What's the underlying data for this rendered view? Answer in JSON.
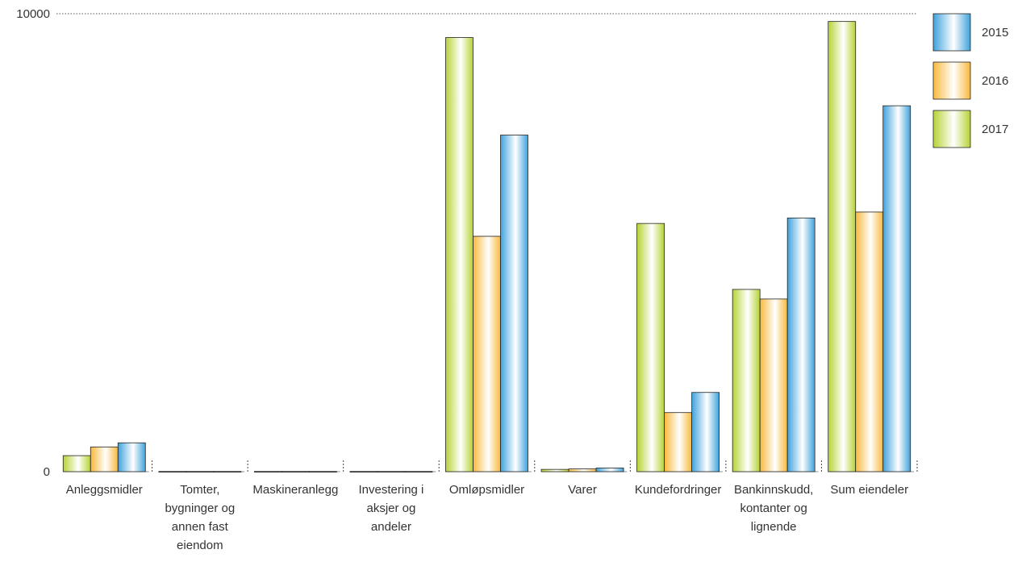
{
  "chart_data": {
    "type": "bar",
    "categories": [
      [
        "Anleggsmidler"
      ],
      [
        "Tomter,",
        "bygninger og",
        "annen fast",
        "eiendom"
      ],
      [
        "Maskineranlegg"
      ],
      [
        "Investering i",
        "aksjer og",
        "andeler"
      ],
      [
        "Omløpsmidler"
      ],
      [
        "Varer"
      ],
      [
        "Kundefordringer"
      ],
      [
        "Bankinnskudd,",
        "kontanter og",
        "lignende"
      ],
      [
        "Sum eiendeler"
      ]
    ],
    "series": [
      {
        "name": "2017",
        "color": "#b5d334",
        "values": [
          350,
          5,
          5,
          5,
          9480,
          50,
          5420,
          3980,
          9830
        ]
      },
      {
        "name": "2016",
        "color": "#f8b93c",
        "values": [
          540,
          5,
          5,
          5,
          5140,
          60,
          1290,
          3770,
          5670
        ]
      },
      {
        "name": "2015",
        "color": "#3fa2dc",
        "values": [
          630,
          5,
          5,
          5,
          7350,
          80,
          1730,
          5540,
          7990
        ]
      }
    ],
    "legend_order": [
      "2015",
      "2016",
      "2017"
    ],
    "yticks": [
      "0",
      "10000"
    ],
    "ylim": [
      0,
      10000
    ],
    "legend_position": "top-right",
    "grid": "dotted line at top"
  }
}
